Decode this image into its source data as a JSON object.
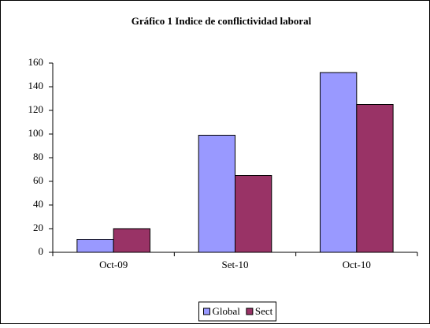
{
  "chart_data": {
    "type": "bar",
    "title": "Gráfico 1 Indice de conflictividad laboral",
    "categories": [
      "Oct-09",
      "Set-10",
      "Oct-10"
    ],
    "series": [
      {
        "name": "Global",
        "color": "#9999ff",
        "values": [
          11,
          99,
          152
        ]
      },
      {
        "name": "Sect",
        "color": "#993366",
        "values": [
          20,
          65,
          125
        ]
      }
    ],
    "ylim": [
      0,
      160
    ],
    "yticks": [
      0,
      20,
      40,
      60,
      80,
      100,
      120,
      140,
      160
    ],
    "grid": false,
    "legend": "bottom"
  }
}
